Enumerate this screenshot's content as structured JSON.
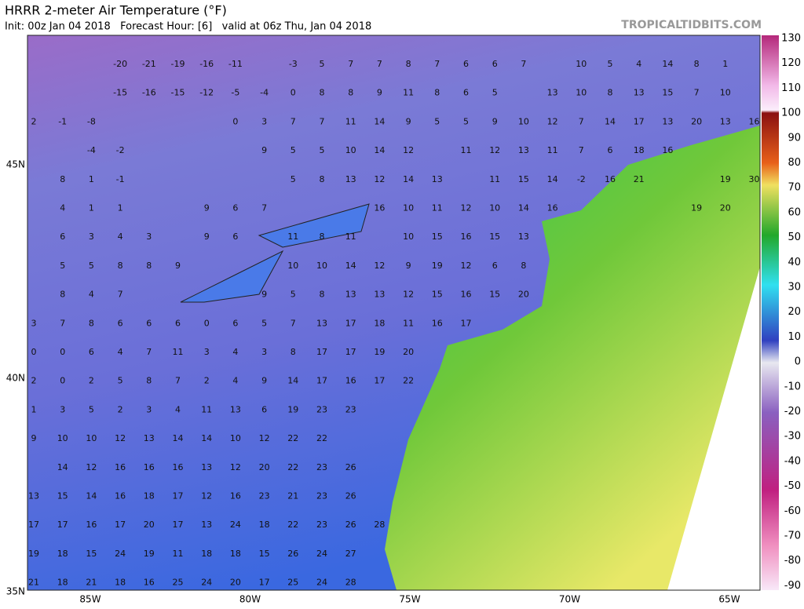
{
  "header": {
    "title": "HRRR 2-meter Air Temperature (°F)",
    "subtitle": "Init: 00z Jan 04 2018   Forecast Hour: [6]   valid at 06z Thu, Jan 04 2018",
    "site": "TROPICALTIDBITS.COM"
  },
  "map": {
    "lon_labels": [
      "85W",
      "80W",
      "75W",
      "70W",
      "65W"
    ],
    "lat_labels": [
      "45N",
      "40N",
      "35N"
    ],
    "station_values": [
      [
        null,
        null,
        null,
        -20,
        -21,
        -19,
        -16,
        -11,
        null,
        -3,
        5,
        7,
        7,
        8,
        7,
        6,
        6,
        7,
        null,
        10,
        5,
        4,
        14,
        8,
        1,
        null
      ],
      [
        null,
        null,
        null,
        -15,
        -16,
        -15,
        -12,
        -5,
        -4,
        0,
        8,
        8,
        9,
        11,
        8,
        6,
        5,
        null,
        13,
        10,
        8,
        13,
        15,
        7,
        10,
        null
      ],
      [
        2,
        -1,
        -8,
        null,
        null,
        null,
        null,
        0,
        3,
        7,
        7,
        11,
        14,
        9,
        5,
        5,
        9,
        10,
        12,
        7,
        14,
        17,
        13,
        20,
        13,
        16
      ],
      [
        null,
        null,
        -4,
        -2,
        null,
        null,
        null,
        null,
        9,
        5,
        5,
        10,
        14,
        12,
        null,
        11,
        12,
        13,
        11,
        7,
        6,
        18,
        16,
        null,
        null,
        null
      ],
      [
        null,
        8,
        1,
        -1,
        null,
        null,
        null,
        null,
        null,
        5,
        8,
        13,
        12,
        14,
        13,
        null,
        11,
        15,
        14,
        -2,
        16,
        21,
        null,
        null,
        19,
        30
      ],
      [
        null,
        4,
        1,
        1,
        null,
        null,
        9,
        6,
        7,
        null,
        null,
        null,
        16,
        10,
        11,
        12,
        10,
        14,
        16,
        null,
        null,
        null,
        null,
        19,
        20,
        null
      ],
      [
        null,
        6,
        3,
        4,
        3,
        null,
        9,
        6,
        null,
        11,
        8,
        11,
        null,
        10,
        15,
        16,
        15,
        13,
        null,
        null,
        null,
        null,
        null,
        null,
        null,
        null
      ],
      [
        null,
        5,
        5,
        8,
        8,
        9,
        null,
        null,
        null,
        10,
        10,
        14,
        12,
        9,
        19,
        12,
        6,
        8,
        null,
        null,
        null,
        null,
        null,
        null,
        null,
        null
      ],
      [
        null,
        8,
        4,
        7,
        null,
        null,
        null,
        null,
        9,
        5,
        8,
        13,
        13,
        12,
        15,
        16,
        15,
        20,
        null,
        null,
        null,
        null,
        null,
        null,
        null,
        null
      ],
      [
        3,
        7,
        8,
        6,
        6,
        6,
        0,
        6,
        5,
        7,
        13,
        17,
        18,
        11,
        16,
        17,
        null,
        null,
        null,
        null,
        null,
        null,
        null,
        null,
        null,
        null
      ],
      [
        0,
        0,
        6,
        4,
        7,
        11,
        3,
        4,
        3,
        8,
        17,
        17,
        19,
        20,
        null,
        null,
        null,
        null,
        null,
        null,
        null,
        null,
        null,
        null,
        null,
        null
      ],
      [
        2,
        0,
        2,
        5,
        8,
        7,
        2,
        4,
        9,
        14,
        17,
        16,
        17,
        22,
        null,
        null,
        null,
        null,
        null,
        null,
        null,
        null,
        null,
        null,
        null,
        null
      ],
      [
        1,
        3,
        5,
        2,
        3,
        4,
        11,
        13,
        6,
        19,
        23,
        23,
        null,
        null,
        null,
        null,
        null,
        null,
        null,
        null,
        null,
        null,
        null,
        null,
        null,
        null
      ],
      [
        9,
        10,
        10,
        12,
        13,
        14,
        14,
        10,
        12,
        22,
        22,
        null,
        null,
        null,
        null,
        null,
        null,
        null,
        null,
        null,
        null,
        null,
        null,
        null,
        null,
        null
      ],
      [
        null,
        14,
        12,
        16,
        16,
        16,
        13,
        12,
        20,
        22,
        23,
        26,
        null,
        null,
        null,
        null,
        null,
        null,
        null,
        null,
        null,
        null,
        null,
        null,
        null,
        null
      ],
      [
        13,
        15,
        14,
        16,
        18,
        17,
        12,
        16,
        23,
        21,
        23,
        26,
        null,
        null,
        null,
        null,
        null,
        null,
        null,
        null,
        null,
        null,
        null,
        null,
        null,
        null
      ],
      [
        17,
        17,
        16,
        17,
        20,
        17,
        13,
        24,
        18,
        22,
        23,
        26,
        28,
        null,
        null,
        null,
        null,
        null,
        null,
        null,
        null,
        null,
        null,
        null,
        null,
        null
      ],
      [
        19,
        18,
        15,
        24,
        19,
        11,
        18,
        18,
        15,
        26,
        24,
        27,
        null,
        null,
        null,
        null,
        null,
        null,
        null,
        null,
        null,
        null,
        null,
        null,
        null,
        null
      ],
      [
        21,
        18,
        21,
        18,
        16,
        25,
        24,
        20,
        17,
        25,
        24,
        28,
        null,
        null,
        null,
        null,
        null,
        null,
        null,
        null,
        null,
        null,
        null,
        null,
        null,
        null
      ]
    ]
  },
  "colorbar": {
    "labels": [
      130,
      120,
      110,
      100,
      90,
      80,
      70,
      60,
      50,
      40,
      30,
      20,
      10,
      0,
      -10,
      -20,
      -30,
      -40,
      -50,
      -60,
      -70,
      -80,
      -90
    ]
  }
}
